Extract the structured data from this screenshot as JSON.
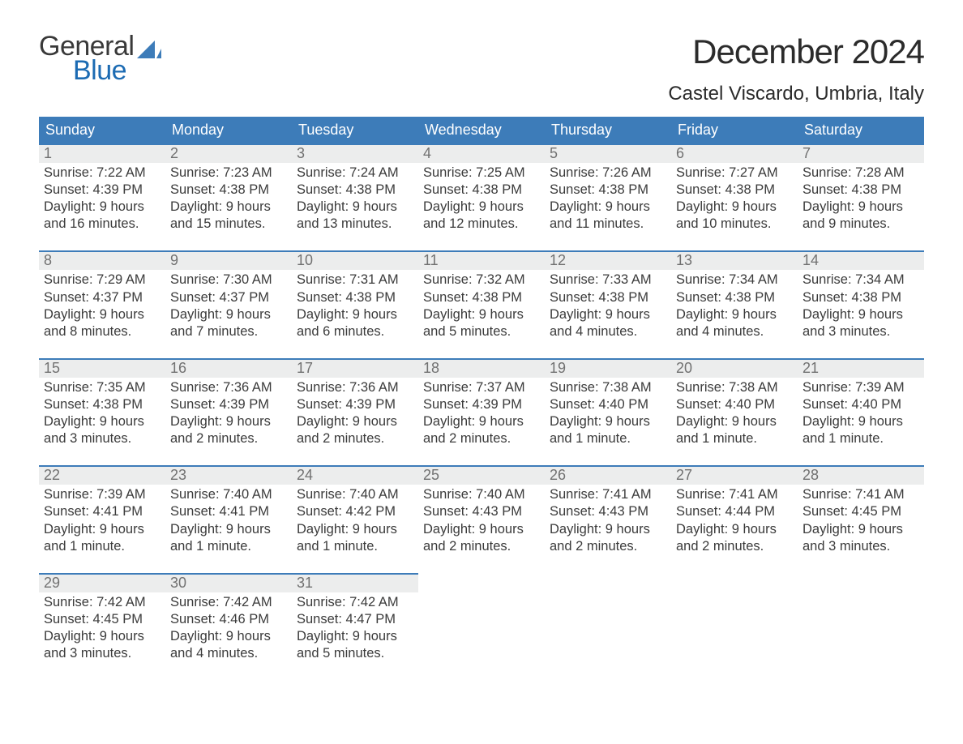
{
  "brand": {
    "line1": "General",
    "line2": "Blue",
    "mark_color": "#3d7cb9"
  },
  "header": {
    "title": "December 2024",
    "location": "Castel Viscardo, Umbria, Italy"
  },
  "calendar": {
    "days_of_week": [
      "Sunday",
      "Monday",
      "Tuesday",
      "Wednesday",
      "Thursday",
      "Friday",
      "Saturday"
    ],
    "colors": {
      "header_bg": "#3d7cb9",
      "header_text": "#ffffff",
      "day_border_top": "#3d7cb9",
      "daynum_bg": "#eceded",
      "daynum_text": "#717171",
      "body_text": "#3b3b3b"
    },
    "weeks": [
      [
        {
          "n": "1",
          "sunrise": "7:22 AM",
          "sunset": "4:39 PM",
          "daylight": "9 hours and 16 minutes."
        },
        {
          "n": "2",
          "sunrise": "7:23 AM",
          "sunset": "4:38 PM",
          "daylight": "9 hours and 15 minutes."
        },
        {
          "n": "3",
          "sunrise": "7:24 AM",
          "sunset": "4:38 PM",
          "daylight": "9 hours and 13 minutes."
        },
        {
          "n": "4",
          "sunrise": "7:25 AM",
          "sunset": "4:38 PM",
          "daylight": "9 hours and 12 minutes."
        },
        {
          "n": "5",
          "sunrise": "7:26 AM",
          "sunset": "4:38 PM",
          "daylight": "9 hours and 11 minutes."
        },
        {
          "n": "6",
          "sunrise": "7:27 AM",
          "sunset": "4:38 PM",
          "daylight": "9 hours and 10 minutes."
        },
        {
          "n": "7",
          "sunrise": "7:28 AM",
          "sunset": "4:38 PM",
          "daylight": "9 hours and 9 minutes."
        }
      ],
      [
        {
          "n": "8",
          "sunrise": "7:29 AM",
          "sunset": "4:37 PM",
          "daylight": "9 hours and 8 minutes."
        },
        {
          "n": "9",
          "sunrise": "7:30 AM",
          "sunset": "4:37 PM",
          "daylight": "9 hours and 7 minutes."
        },
        {
          "n": "10",
          "sunrise": "7:31 AM",
          "sunset": "4:38 PM",
          "daylight": "9 hours and 6 minutes."
        },
        {
          "n": "11",
          "sunrise": "7:32 AM",
          "sunset": "4:38 PM",
          "daylight": "9 hours and 5 minutes."
        },
        {
          "n": "12",
          "sunrise": "7:33 AM",
          "sunset": "4:38 PM",
          "daylight": "9 hours and 4 minutes."
        },
        {
          "n": "13",
          "sunrise": "7:34 AM",
          "sunset": "4:38 PM",
          "daylight": "9 hours and 4 minutes."
        },
        {
          "n": "14",
          "sunrise": "7:34 AM",
          "sunset": "4:38 PM",
          "daylight": "9 hours and 3 minutes."
        }
      ],
      [
        {
          "n": "15",
          "sunrise": "7:35 AM",
          "sunset": "4:38 PM",
          "daylight": "9 hours and 3 minutes."
        },
        {
          "n": "16",
          "sunrise": "7:36 AM",
          "sunset": "4:39 PM",
          "daylight": "9 hours and 2 minutes."
        },
        {
          "n": "17",
          "sunrise": "7:36 AM",
          "sunset": "4:39 PM",
          "daylight": "9 hours and 2 minutes."
        },
        {
          "n": "18",
          "sunrise": "7:37 AM",
          "sunset": "4:39 PM",
          "daylight": "9 hours and 2 minutes."
        },
        {
          "n": "19",
          "sunrise": "7:38 AM",
          "sunset": "4:40 PM",
          "daylight": "9 hours and 1 minute."
        },
        {
          "n": "20",
          "sunrise": "7:38 AM",
          "sunset": "4:40 PM",
          "daylight": "9 hours and 1 minute."
        },
        {
          "n": "21",
          "sunrise": "7:39 AM",
          "sunset": "4:40 PM",
          "daylight": "9 hours and 1 minute."
        }
      ],
      [
        {
          "n": "22",
          "sunrise": "7:39 AM",
          "sunset": "4:41 PM",
          "daylight": "9 hours and 1 minute."
        },
        {
          "n": "23",
          "sunrise": "7:40 AM",
          "sunset": "4:41 PM",
          "daylight": "9 hours and 1 minute."
        },
        {
          "n": "24",
          "sunrise": "7:40 AM",
          "sunset": "4:42 PM",
          "daylight": "9 hours and 1 minute."
        },
        {
          "n": "25",
          "sunrise": "7:40 AM",
          "sunset": "4:43 PM",
          "daylight": "9 hours and 2 minutes."
        },
        {
          "n": "26",
          "sunrise": "7:41 AM",
          "sunset": "4:43 PM",
          "daylight": "9 hours and 2 minutes."
        },
        {
          "n": "27",
          "sunrise": "7:41 AM",
          "sunset": "4:44 PM",
          "daylight": "9 hours and 2 minutes."
        },
        {
          "n": "28",
          "sunrise": "7:41 AM",
          "sunset": "4:45 PM",
          "daylight": "9 hours and 3 minutes."
        }
      ],
      [
        {
          "n": "29",
          "sunrise": "7:42 AM",
          "sunset": "4:45 PM",
          "daylight": "9 hours and 3 minutes."
        },
        {
          "n": "30",
          "sunrise": "7:42 AM",
          "sunset": "4:46 PM",
          "daylight": "9 hours and 4 minutes."
        },
        {
          "n": "31",
          "sunrise": "7:42 AM",
          "sunset": "4:47 PM",
          "daylight": "9 hours and 5 minutes."
        },
        null,
        null,
        null,
        null
      ]
    ],
    "labels": {
      "sunrise": "Sunrise:",
      "sunset": "Sunset:",
      "daylight": "Daylight:"
    }
  }
}
